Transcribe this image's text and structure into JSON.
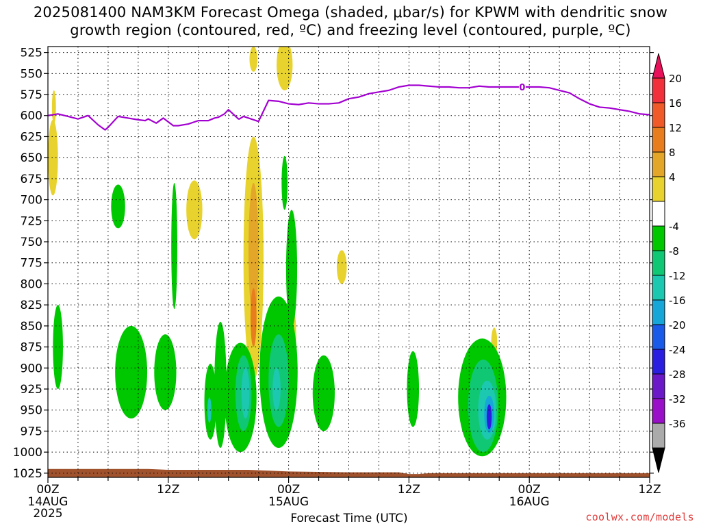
{
  "title_line1": "2025081400 NAM3KM Forecast Omega (shaded, μbar/s) for KPWM with dendritic snow",
  "title_line2": "growth region (contoured, red, ºC) and freezing level (contoured, purple, ºC)",
  "credit": "coolwx.com/models",
  "colors": {
    "freezing_line": "#a200d0",
    "terrain": "#a0522d",
    "grid": "#000000"
  },
  "chart_data": {
    "type": "heatmap",
    "xlabel": "Forecast Time (UTC)",
    "ylabel": "",
    "x_ticks": [
      {
        "hour": 0,
        "label": "00Z",
        "sub": "14AUG",
        "sub2": "2025"
      },
      {
        "hour": 12,
        "label": "12Z",
        "sub": "",
        "sub2": ""
      },
      {
        "hour": 24,
        "label": "00Z",
        "sub": "15AUG",
        "sub2": ""
      },
      {
        "hour": 36,
        "label": "12Z",
        "sub": "",
        "sub2": ""
      },
      {
        "hour": 48,
        "label": "00Z",
        "sub": "16AUG",
        "sub2": ""
      },
      {
        "hour": 60,
        "label": "12Z",
        "sub": "",
        "sub2": ""
      }
    ],
    "xlim": [
      0,
      60
    ],
    "ylim": [
      1030,
      518
    ],
    "y_ticks": [
      525,
      550,
      575,
      600,
      625,
      650,
      675,
      700,
      725,
      750,
      775,
      800,
      825,
      850,
      875,
      900,
      925,
      950,
      975,
      1000,
      1025
    ],
    "grid": true,
    "colorbar": {
      "labels": [
        "20",
        "16",
        "12",
        "8",
        "4",
        "-4",
        "-8",
        "-12",
        "-16",
        "-20",
        "-24",
        "-28",
        "-32",
        "-36"
      ],
      "colors": [
        "#e8115a",
        "#f2303c",
        "#f05a28",
        "#e87d1e",
        "#e4a629",
        "#e8d32e",
        "#ffffff",
        "#00c800",
        "#10c873",
        "#1cc8b0",
        "#16a6d8",
        "#1a5ae8",
        "#2a1ee0",
        "#6a18c8",
        "#9a10c8",
        "#aaaaaa",
        "#000000"
      ]
    },
    "freezing_level": {
      "label": "0",
      "label_hour": 47.3,
      "hours": [
        0,
        1,
        2,
        3,
        4,
        5,
        5.7,
        6,
        7,
        8,
        9,
        9.7,
        10,
        10.8,
        11.5,
        12.5,
        13,
        14,
        15,
        16,
        16.6,
        17,
        17.6,
        18,
        19,
        19.1,
        19.5,
        21,
        22,
        23,
        24,
        25,
        26,
        27,
        28,
        29,
        30,
        31,
        32,
        33,
        34,
        35,
        36,
        37,
        38,
        39,
        40,
        41,
        42,
        43,
        44,
        45,
        46,
        47,
        48,
        49,
        50,
        51,
        52,
        53,
        54,
        55,
        56,
        57,
        58,
        59,
        60
      ],
      "pressure": [
        600,
        598,
        601,
        604,
        600,
        611,
        617,
        614,
        601,
        603,
        605,
        606,
        604,
        609,
        603,
        612,
        612,
        610,
        606,
        606,
        603,
        602,
        598,
        593,
        604,
        604,
        601,
        607,
        582,
        583,
        586,
        587,
        585,
        586,
        586,
        585,
        580,
        578,
        574,
        572,
        570,
        566,
        564,
        564,
        565,
        566,
        566,
        567,
        567,
        565,
        566,
        566,
        566,
        566,
        566,
        566,
        567,
        570,
        573,
        580,
        586,
        590,
        591,
        593,
        595,
        598,
        599
      ]
    },
    "terrain": {
      "hours": [
        0,
        10,
        12,
        20,
        22,
        24,
        30,
        35,
        36,
        37,
        38,
        60
      ],
      "pressure": [
        1020,
        1020,
        1021,
        1021,
        1022,
        1023,
        1024,
        1024,
        1026,
        1026,
        1025,
        1025
      ]
    },
    "omega_regions": [
      {
        "value": 4,
        "cx": 0.5,
        "cy": 650,
        "rx": 0.5,
        "ry": 45
      },
      {
        "value": 4,
        "cx": 0.6,
        "cy": 590,
        "rx": 0.2,
        "ry": 20
      },
      {
        "value": 4,
        "cx": 20.5,
        "cy": 533,
        "rx": 0.4,
        "ry": 15
      },
      {
        "value": 4,
        "cx": 23.6,
        "cy": 540,
        "rx": 0.8,
        "ry": 30
      },
      {
        "value": 4,
        "cx": 14.6,
        "cy": 712,
        "rx": 0.8,
        "ry": 35
      },
      {
        "value": 4,
        "cx": 29.3,
        "cy": 780,
        "rx": 0.5,
        "ry": 20
      },
      {
        "value": 4,
        "cx": 20.5,
        "cy": 770,
        "rx": 1.0,
        "ry": 145
      },
      {
        "value": 8,
        "cx": 20.5,
        "cy": 760,
        "rx": 0.5,
        "ry": 80
      },
      {
        "value": 12,
        "cx": 20.5,
        "cy": 840,
        "rx": 0.3,
        "ry": 35
      },
      {
        "value": 4,
        "cx": 24.6,
        "cy": 858,
        "rx": 0.15,
        "ry": 20
      },
      {
        "value": 4,
        "cx": 44.5,
        "cy": 870,
        "rx": 0.3,
        "ry": 18
      },
      {
        "value": -4,
        "cx": 1.0,
        "cy": 875,
        "rx": 0.5,
        "ry": 50
      },
      {
        "value": -4,
        "cx": 7.0,
        "cy": 708,
        "rx": 0.7,
        "ry": 26
      },
      {
        "value": -4,
        "cx": 12.6,
        "cy": 755,
        "rx": 0.3,
        "ry": 75
      },
      {
        "value": -4,
        "cx": 8.3,
        "cy": 905,
        "rx": 1.6,
        "ry": 55
      },
      {
        "value": -4,
        "cx": 11.7,
        "cy": 905,
        "rx": 1.1,
        "ry": 45
      },
      {
        "value": -4,
        "cx": 16.2,
        "cy": 940,
        "rx": 0.6,
        "ry": 45
      },
      {
        "value": -4,
        "cx": 17.2,
        "cy": 920,
        "rx": 0.6,
        "ry": 75
      },
      {
        "value": -4,
        "cx": 19.2,
        "cy": 935,
        "rx": 1.6,
        "ry": 65
      },
      {
        "value": -4,
        "cx": 23.0,
        "cy": 905,
        "rx": 1.9,
        "ry": 90
      },
      {
        "value": -4,
        "cx": 24.3,
        "cy": 782,
        "rx": 0.55,
        "ry": 70
      },
      {
        "value": -4,
        "cx": 23.6,
        "cy": 680,
        "rx": 0.3,
        "ry": 32
      },
      {
        "value": -4,
        "cx": 27.5,
        "cy": 930,
        "rx": 1.1,
        "ry": 45
      },
      {
        "value": -4,
        "cx": 36.4,
        "cy": 925,
        "rx": 0.6,
        "ry": 45
      },
      {
        "value": -4,
        "cx": 43.3,
        "cy": 935,
        "rx": 2.4,
        "ry": 70
      },
      {
        "value": -8,
        "cx": 19.5,
        "cy": 930,
        "rx": 0.8,
        "ry": 45
      },
      {
        "value": -8,
        "cx": 23.0,
        "cy": 915,
        "rx": 1.0,
        "ry": 55
      },
      {
        "value": -8,
        "cx": 43.4,
        "cy": 945,
        "rx": 1.5,
        "ry": 55
      },
      {
        "value": -12,
        "cx": 19.7,
        "cy": 930,
        "rx": 0.4,
        "ry": 30
      },
      {
        "value": -12,
        "cx": 22.8,
        "cy": 925,
        "rx": 0.4,
        "ry": 25
      },
      {
        "value": -12,
        "cx": 43.8,
        "cy": 950,
        "rx": 0.9,
        "ry": 35
      },
      {
        "value": -16,
        "cx": 44.0,
        "cy": 955,
        "rx": 0.5,
        "ry": 22
      },
      {
        "value": -20,
        "cx": 44.0,
        "cy": 958,
        "rx": 0.25,
        "ry": 15
      },
      {
        "value": -12,
        "cx": 16.1,
        "cy": 950,
        "rx": 0.2,
        "ry": 15
      }
    ]
  }
}
